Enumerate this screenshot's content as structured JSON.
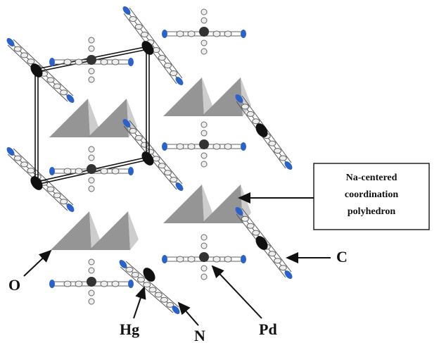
{
  "callout": {
    "lines": [
      "Na-centered",
      "coordination",
      "polyhedron"
    ]
  },
  "labels": {
    "O": "O",
    "Hg": "Hg",
    "N": "N",
    "Pd": "Pd",
    "C": "C"
  }
}
